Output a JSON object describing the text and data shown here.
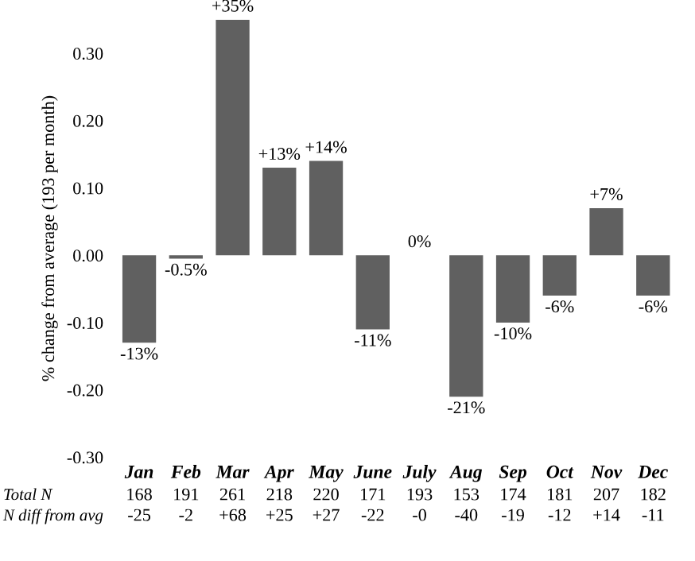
{
  "chart_data": {
    "type": "bar",
    "ylabel": "% change from average (193 per month)",
    "categories": [
      "Jan",
      "Feb",
      "Mar",
      "Apr",
      "May",
      "June",
      "July",
      "Aug",
      "Sep",
      "Oct",
      "Nov",
      "Dec"
    ],
    "values": [
      -0.13,
      -0.005,
      0.35,
      0.13,
      0.14,
      -0.11,
      0.0,
      -0.21,
      -0.1,
      -0.06,
      0.07,
      -0.06
    ],
    "value_labels": [
      "-13%",
      "-0.5%",
      "+35%",
      "+13%",
      "+14%",
      "-11%",
      "0%",
      "-21%",
      "-10%",
      "-6%",
      "+7%",
      "-6%"
    ],
    "color": "#606060",
    "ylim": [
      -0.3,
      0.35
    ],
    "yticks": [
      {
        "value": -0.3,
        "label": "-0.30"
      },
      {
        "value": -0.2,
        "label": "-0.20"
      },
      {
        "value": -0.1,
        "label": "-0.10"
      },
      {
        "value": 0,
        "label": "0.00"
      },
      {
        "value": 0.1,
        "label": "0.10"
      },
      {
        "value": 0.2,
        "label": "0.20"
      },
      {
        "value": 0.3,
        "label": "0.30"
      }
    ],
    "annotations": [
      "Total N",
      "168",
      "191",
      "261",
      "218",
      "220",
      "171",
      "193",
      "153",
      "174",
      "181",
      "207",
      "182",
      "N diff from avg",
      "-25",
      "-2",
      "+68",
      "+25",
      "+27",
      "-22",
      "-0",
      "-40",
      "-19",
      "-12",
      "+14",
      "-11"
    ],
    "grid": false
  }
}
